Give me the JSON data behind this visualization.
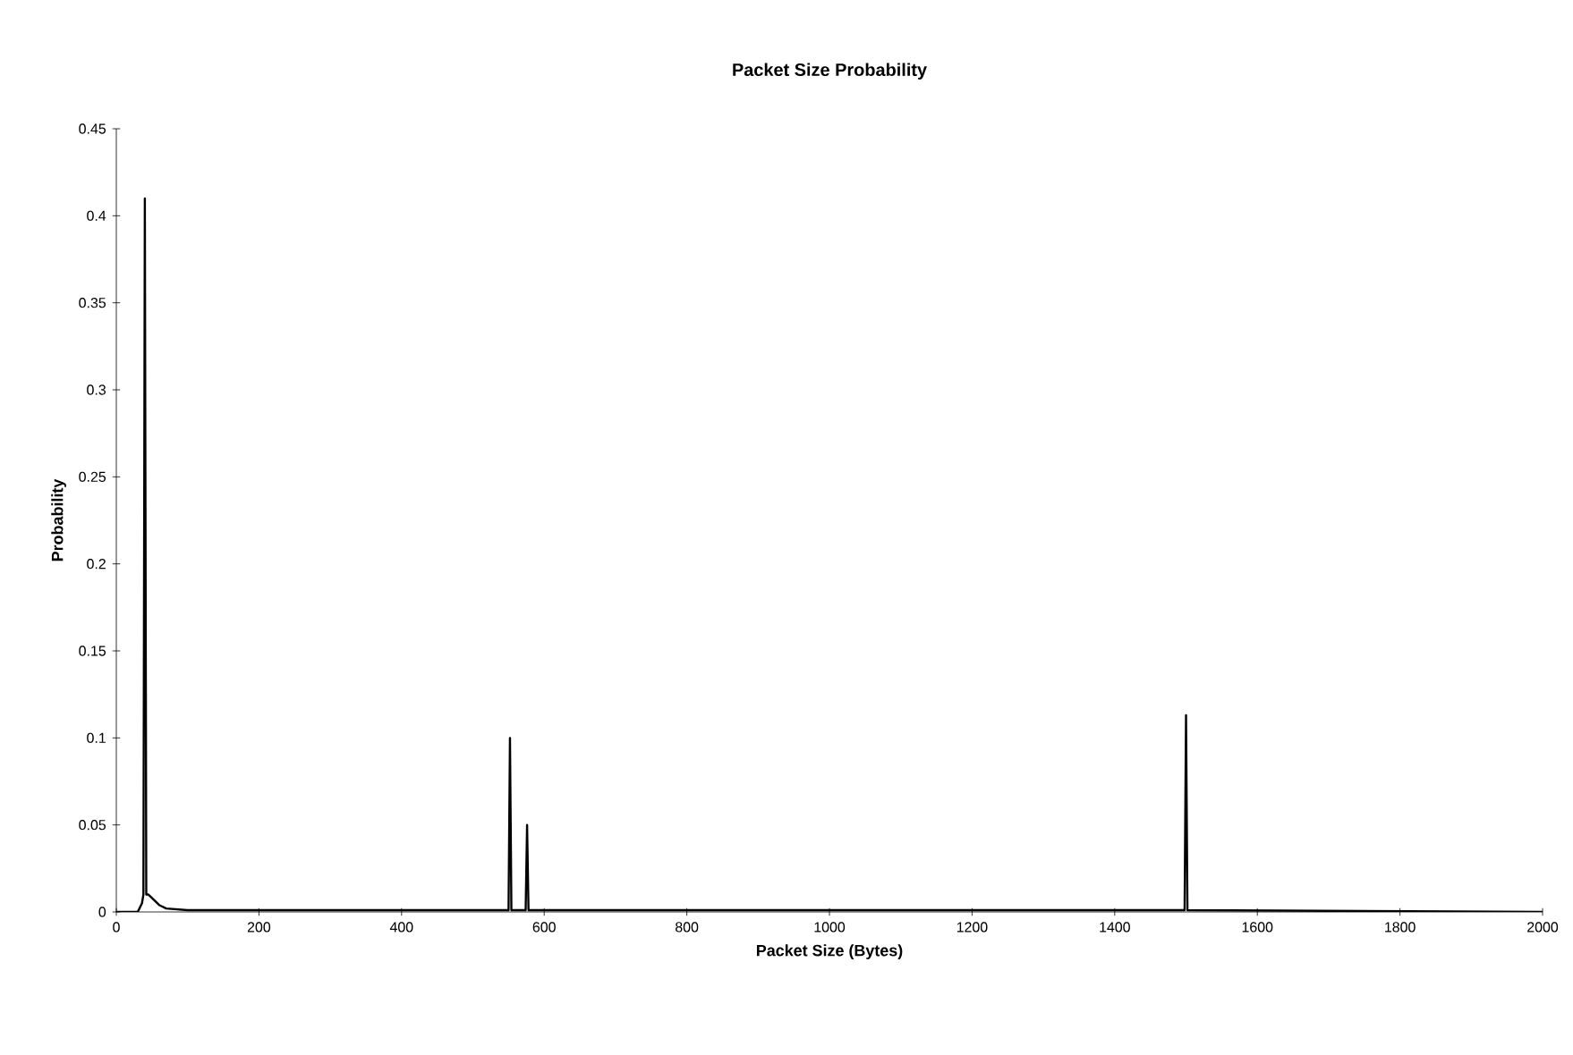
{
  "chart_data": {
    "type": "line",
    "title": "Packet Size Probability",
    "xlabel": "Packet Size (Bytes)",
    "ylabel": "Probability",
    "x": [
      0,
      30,
      36,
      38,
      40,
      42,
      45,
      50,
      55,
      60,
      70,
      100,
      300,
      550,
      552,
      554,
      574,
      576,
      578,
      1000,
      1498,
      1500,
      1502,
      2000
    ],
    "series": [
      {
        "color": "#000000",
        "values": [
          0,
          0,
          0.005,
          0.01,
          0.41,
          0.01,
          0.01,
          0.008,
          0.006,
          0.004,
          0.002,
          0.001,
          0.001,
          0.001,
          0.1,
          0.001,
          0.001,
          0.05,
          0.001,
          0.001,
          0.001,
          0.113,
          0.001,
          0
        ]
      }
    ],
    "xlim": [
      0,
      2000
    ],
    "xticks": [
      0,
      200,
      400,
      600,
      800,
      1000,
      1200,
      1400,
      1600,
      1800,
      2000
    ],
    "ylim": [
      0,
      0.45
    ],
    "yticks": [
      0,
      0.05,
      0.1,
      0.15,
      0.2,
      0.25,
      0.3,
      0.35,
      0.4,
      0.45
    ],
    "marker": "none",
    "line_style": "solid"
  }
}
